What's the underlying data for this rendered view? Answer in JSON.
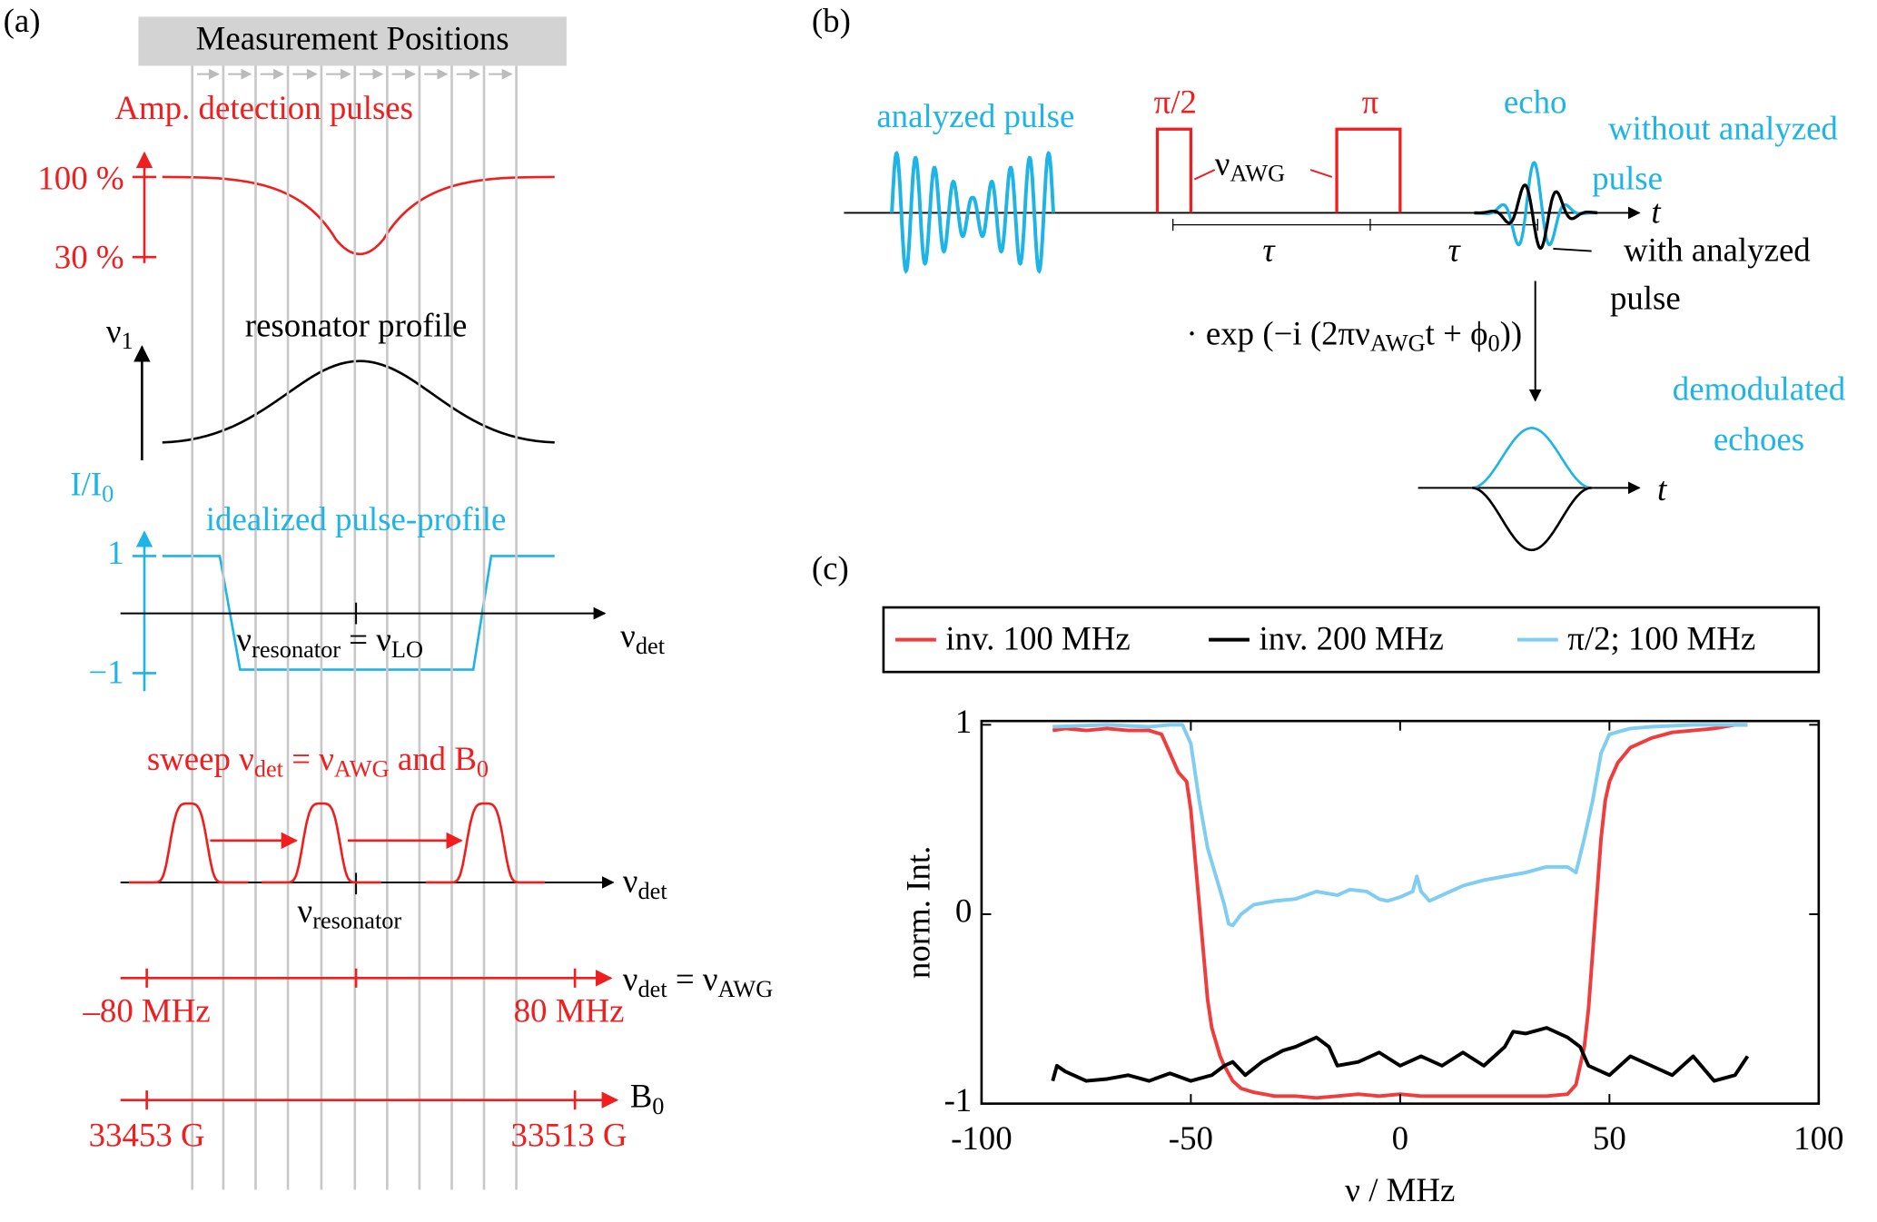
{
  "panel_a": {
    "label": "(a)",
    "header": "Measurement Positions",
    "amp_title": "Amp. detection pulses",
    "amp_high": "100 %",
    "amp_low": "30 %",
    "nu1": [
      "ν",
      "1"
    ],
    "resonator_profile": "resonator profile",
    "intensity": [
      "I/I",
      "0"
    ],
    "pulse_profile_title": "idealized pulse-profile",
    "level_high": "1",
    "level_low": "−1",
    "profile_axis": [
      "ν",
      "det"
    ],
    "resonator_lo": [
      "ν",
      "resonator",
      " = ν",
      "LO"
    ],
    "sweep_title": [
      "sweep ν",
      "det",
      " = ν",
      "AWG",
      " and B",
      "0"
    ],
    "sweep_axis": [
      "ν",
      "det"
    ],
    "sweep_resonator": [
      "ν",
      "resonator"
    ],
    "freq_axis": [
      "ν",
      "det",
      " = ν",
      "AWG"
    ],
    "freq_min": "–80 MHz",
    "freq_max": "80 MHz",
    "field_axis": [
      "B",
      "0"
    ],
    "field_min": "33453 G",
    "field_max": "33513 G"
  },
  "panel_b": {
    "label": "(b)",
    "analyzed_pulse": "analyzed pulse",
    "pi_half": "π/2",
    "pi": "π",
    "nu_awg": [
      "ν",
      "AWG"
    ],
    "time_axis": "t",
    "tau_1": "τ",
    "tau_2": "τ",
    "echo": "echo",
    "without_1": "without analyzed",
    "without_2": "pulse",
    "with_1": "with analyzed",
    "with_2": "pulse",
    "demod_op": [
      "· exp (−i (2πν",
      "AWG",
      "t + ϕ",
      "0",
      "))"
    ],
    "demod_1": "demodulated",
    "demod_2": "echoes",
    "demod_time_axis": "t"
  },
  "chart_data": {
    "type": "line",
    "panel_label": "(c)",
    "xlabel": "ν / MHz",
    "ylabel": "norm. Int.",
    "xlim": [
      -100,
      100
    ],
    "ylim": [
      -1,
      1.02
    ],
    "xticks": [
      -100,
      -50,
      0,
      50,
      100
    ],
    "yticks": [
      -1,
      0,
      1
    ],
    "grid": false,
    "legend": "top",
    "series": [
      {
        "name": "inv. 100 MHz",
        "color": "#f03c3c",
        "x": [
          -83,
          -80,
          -75,
          -70,
          -65,
          -60,
          -57,
          -55,
          -53,
          -51,
          -50,
          -49,
          -48,
          -47,
          -46,
          -45,
          -43,
          -42,
          -40,
          -38,
          -35,
          -30,
          -25,
          -20,
          -15,
          -10,
          -5,
          0,
          5,
          10,
          15,
          20,
          25,
          30,
          35,
          40,
          42,
          44,
          45,
          46,
          47,
          48,
          49,
          50,
          52,
          55,
          60,
          65,
          70,
          75,
          80,
          83
        ],
        "values": [
          0.97,
          0.98,
          0.97,
          0.98,
          0.97,
          0.97,
          0.95,
          0.85,
          0.75,
          0.7,
          0.55,
          0.3,
          0.05,
          -0.2,
          -0.45,
          -0.6,
          -0.75,
          -0.8,
          -0.88,
          -0.92,
          -0.94,
          -0.96,
          -0.96,
          -0.97,
          -0.96,
          -0.95,
          -0.96,
          -0.95,
          -0.96,
          -0.96,
          -0.96,
          -0.96,
          -0.96,
          -0.96,
          -0.96,
          -0.95,
          -0.9,
          -0.7,
          -0.5,
          -0.2,
          0.1,
          0.4,
          0.6,
          0.7,
          0.8,
          0.88,
          0.93,
          0.96,
          0.97,
          0.98,
          1.0,
          1.0
        ]
      },
      {
        "name": "inv. 200 MHz",
        "color": "#000000",
        "x": [
          -83,
          -82,
          -80,
          -75,
          -70,
          -65,
          -60,
          -55,
          -50,
          -45,
          -42,
          -40,
          -37,
          -33,
          -28,
          -25,
          -20,
          -17,
          -15,
          -10,
          -5,
          0,
          5,
          10,
          15,
          20,
          25,
          27,
          30,
          35,
          40,
          43,
          45,
          50,
          55,
          60,
          65,
          70,
          75,
          80,
          83
        ],
        "values": [
          -0.88,
          -0.8,
          -0.83,
          -0.88,
          -0.87,
          -0.85,
          -0.88,
          -0.84,
          -0.88,
          -0.85,
          -0.8,
          -0.78,
          -0.85,
          -0.78,
          -0.72,
          -0.7,
          -0.65,
          -0.7,
          -0.8,
          -0.78,
          -0.73,
          -0.8,
          -0.75,
          -0.8,
          -0.73,
          -0.8,
          -0.7,
          -0.62,
          -0.63,
          -0.6,
          -0.65,
          -0.7,
          -0.8,
          -0.85,
          -0.75,
          -0.8,
          -0.85,
          -0.75,
          -0.88,
          -0.85,
          -0.75
        ]
      },
      {
        "name": "π/2; 100 MHz",
        "color": "#7fcdf0",
        "x": [
          -83,
          -70,
          -60,
          -55,
          -52,
          -50,
          -48,
          -46,
          -44,
          -42,
          -41,
          -40,
          -38,
          -35,
          -30,
          -25,
          -20,
          -15,
          -12,
          -8,
          -5,
          -3,
          0,
          3,
          4,
          5,
          7,
          10,
          15,
          20,
          25,
          30,
          35,
          40,
          42,
          44,
          46,
          48,
          50,
          55,
          60,
          70,
          80,
          83
        ],
        "values": [
          0.99,
          1.0,
          0.99,
          1.0,
          1.0,
          0.9,
          0.6,
          0.35,
          0.2,
          0.05,
          -0.05,
          -0.06,
          0.0,
          0.05,
          0.07,
          0.08,
          0.12,
          0.1,
          0.13,
          0.12,
          0.08,
          0.07,
          0.09,
          0.12,
          0.2,
          0.12,
          0.07,
          0.1,
          0.15,
          0.18,
          0.2,
          0.22,
          0.25,
          0.25,
          0.22,
          0.4,
          0.6,
          0.85,
          0.95,
          0.98,
          0.99,
          1.0,
          1.0,
          1.0
        ]
      }
    ]
  }
}
